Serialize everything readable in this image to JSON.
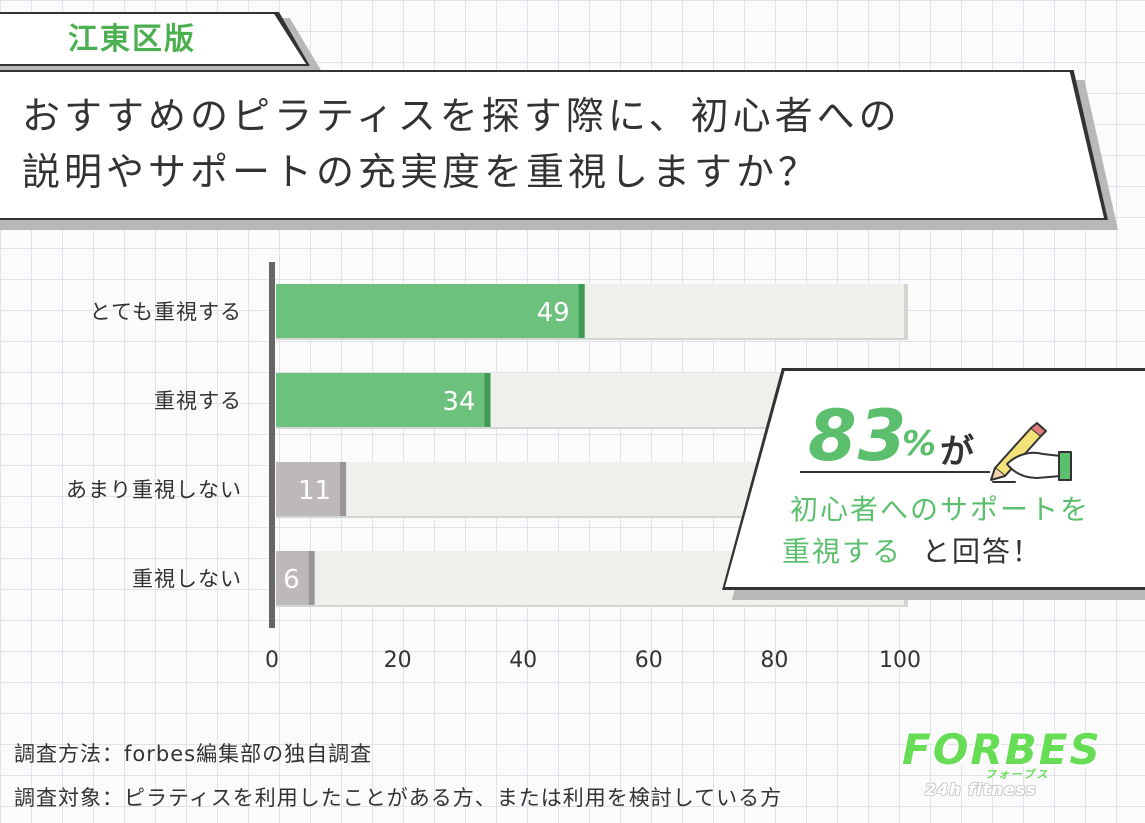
{
  "tag": "江東区版",
  "title_lines": [
    "おすすめのピラティスを探す際に、初心者への",
    "説明やサポートの充実度を重視しますか？"
  ],
  "callout": {
    "number": "83",
    "percent": "%",
    "particle": "が",
    "line1": "初心者へのサポートを",
    "line2_emph": "重視する",
    "line2_rest": "と回答！"
  },
  "footer": {
    "method": "調査方法：forbes編集部の独自調査",
    "target": "調査対象：ピラティスを利用したことがある方、または利用を検討している方"
  },
  "logo": {
    "word": "FORBES",
    "kana": "フォーブス",
    "sub": "24h fitness"
  },
  "colors": {
    "green": "#6cc27c",
    "gray": "#bdb9b9",
    "track": "#eef0ec"
  },
  "icon_names": [
    "pencil-hand-icon"
  ],
  "chart_data": {
    "type": "bar",
    "orientation": "horizontal",
    "categories": [
      "とても重視する",
      "重視する",
      "あまり重視しない",
      "重視しない"
    ],
    "values": [
      49,
      34,
      11,
      6
    ],
    "value_labels": [
      "49",
      "34",
      "11",
      "6"
    ],
    "bar_colors": [
      "green",
      "green",
      "gray",
      "gray"
    ],
    "xlim": [
      0,
      100
    ],
    "x_ticks": [
      "0",
      "20",
      "40",
      "60",
      "80",
      "100"
    ],
    "title": "",
    "xlabel": "",
    "ylabel": "",
    "grid": false,
    "legend": "none"
  }
}
